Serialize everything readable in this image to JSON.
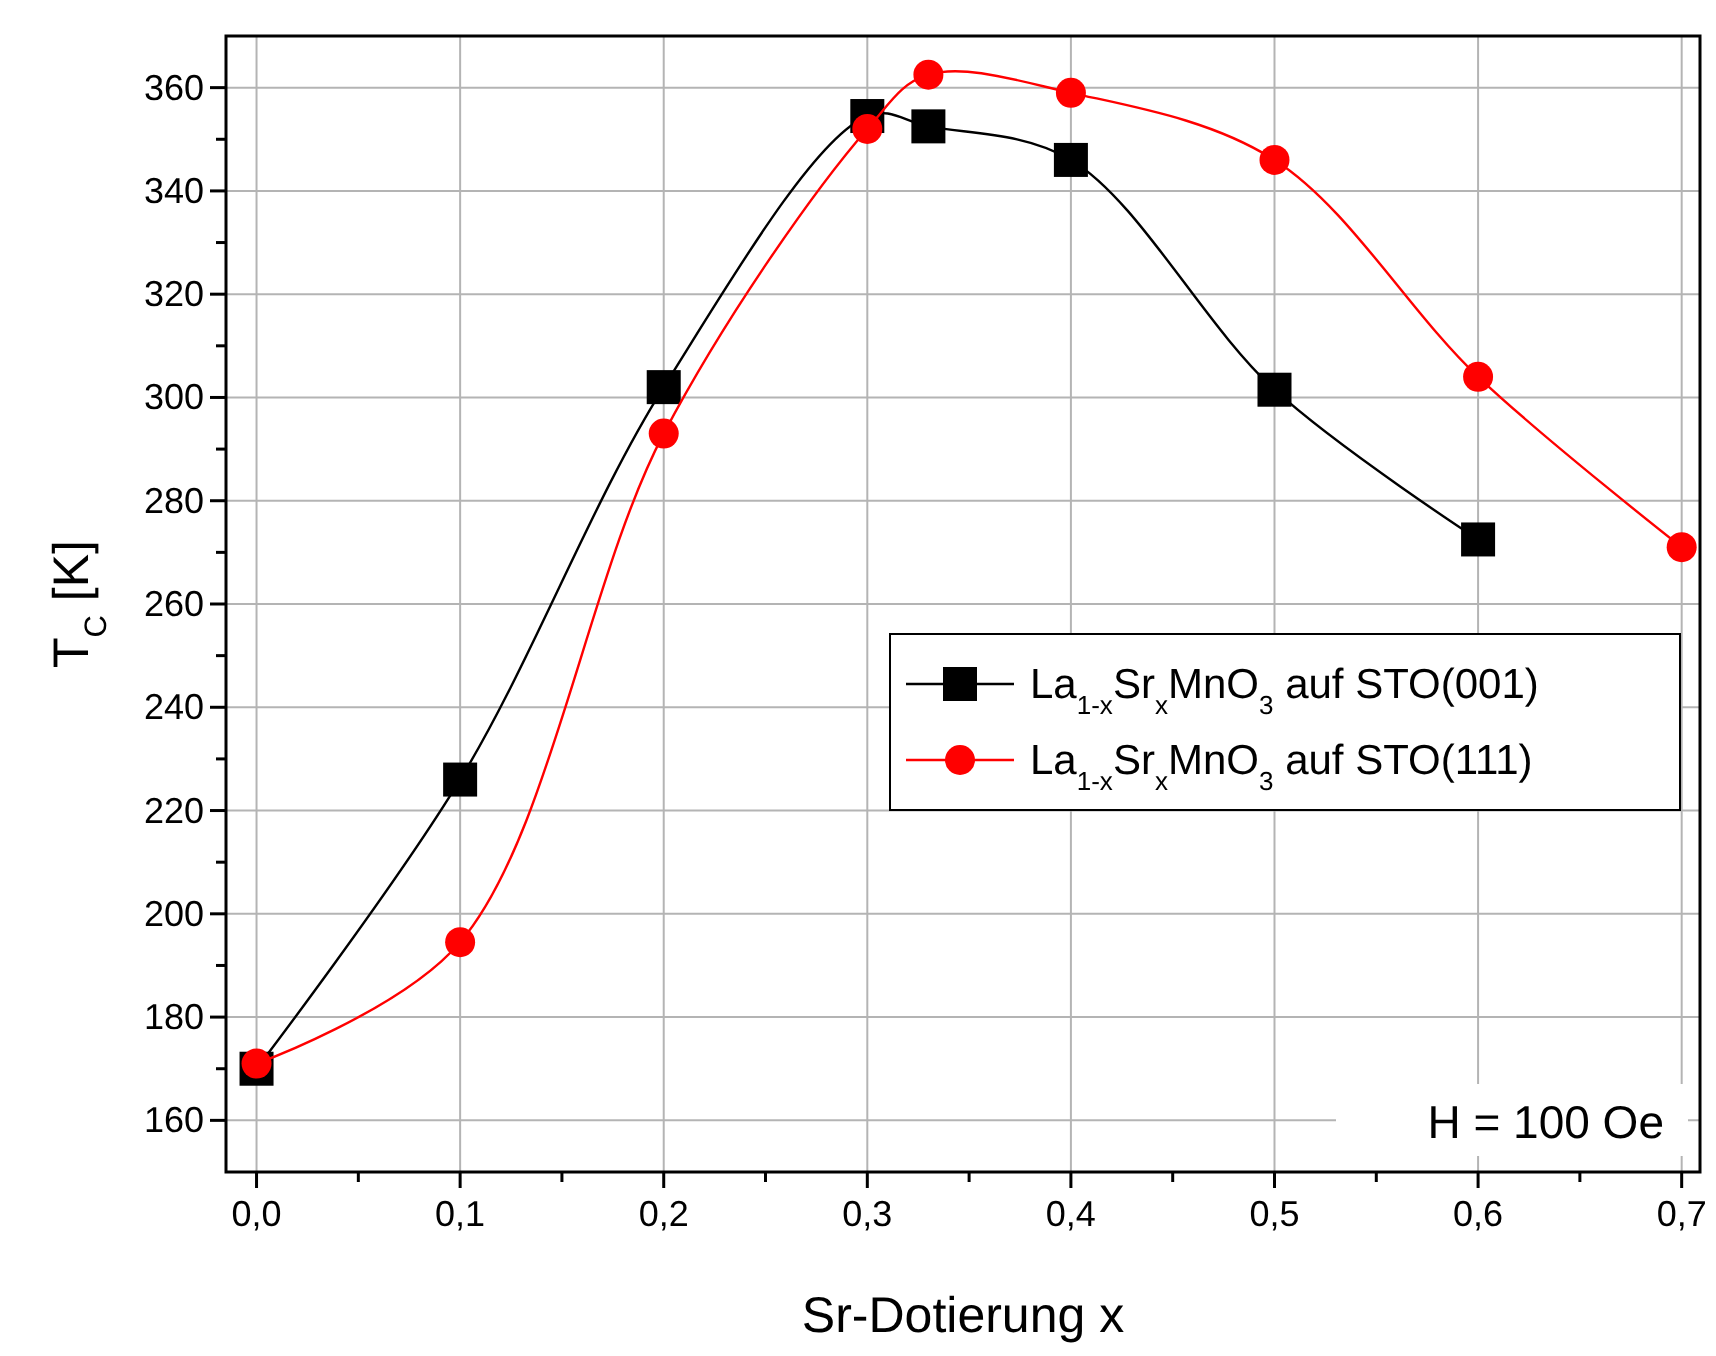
{
  "chart_data": {
    "type": "line",
    "xlabel": "Sr-Dotierung x",
    "ylabel": "T$_{C}$ [K]",
    "xlim": [
      -0.015,
      0.709
    ],
    "ylim": [
      150,
      370
    ],
    "xticks": [
      {
        "value": 0,
        "label": "0,0"
      },
      {
        "value": 0.05,
        "label": null
      },
      {
        "value": 0.1,
        "label": "0,1"
      },
      {
        "value": 0.15,
        "label": null
      },
      {
        "value": 0.2,
        "label": "0,2"
      },
      {
        "value": 0.25,
        "label": null
      },
      {
        "value": 0.3,
        "label": "0,3"
      },
      {
        "value": 0.35,
        "label": null
      },
      {
        "value": 0.4,
        "label": "0,4"
      },
      {
        "value": 0.45,
        "label": null
      },
      {
        "value": 0.5,
        "label": "0,5"
      },
      {
        "value": 0.55,
        "label": null
      },
      {
        "value": 0.6,
        "label": "0,6"
      },
      {
        "value": 0.65,
        "label": null
      },
      {
        "value": 0.7,
        "label": "0,7"
      }
    ],
    "yticks": [
      160,
      {
        "value": 170,
        "label": null
      },
      180,
      {
        "value": 190,
        "label": null
      },
      200,
      {
        "value": 210,
        "label": null
      },
      220,
      {
        "value": 230,
        "label": null
      },
      240,
      {
        "value": 250,
        "label": null
      },
      260,
      {
        "value": 270,
        "label": null
      },
      280,
      {
        "value": 290,
        "label": null
      },
      300,
      {
        "value": 310,
        "label": null
      },
      320,
      {
        "value": 330,
        "label": null
      },
      340,
      {
        "value": 350,
        "label": null
      },
      360
    ],
    "grid": true,
    "legend": "right",
    "line_style": "solid",
    "series": [
      {
        "name": "La$_{1-x}$Sr$_{x}$MnO$_{3}$ auf STO(001)",
        "color": "#000000",
        "marker": "square",
        "x": [
          0,
          0.1,
          0.2,
          0.3,
          0.33,
          0.4,
          0.5,
          0.6
        ],
        "values": [
          170,
          226,
          302,
          354.5,
          352.5,
          346,
          301.5,
          272.5
        ]
      },
      {
        "name": "La$_{1-x}$Sr$_{x}$MnO$_{3}$ auf STO(111)",
        "color": "#ff0000",
        "marker": "circle",
        "x": [
          0,
          0.1,
          0.2,
          0.3,
          0.33,
          0.4,
          0.5,
          0.6,
          0.7
        ],
        "values": [
          171,
          194.5,
          293,
          352,
          362.5,
          359,
          346,
          304,
          271
        ]
      }
    ],
    "annotations": [
      "H = 100 Oe"
    ]
  }
}
